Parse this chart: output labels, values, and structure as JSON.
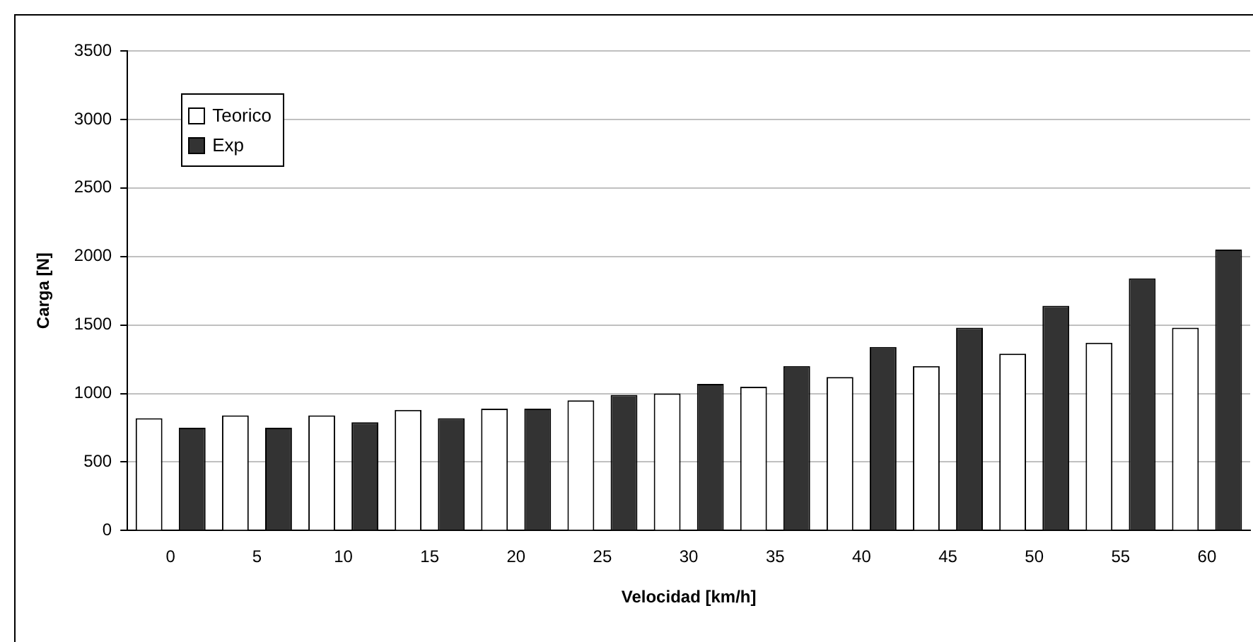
{
  "chart_data": {
    "type": "bar",
    "xlabel": "Velocidad [km/h]",
    "ylabel": "Carga [N]",
    "categories": [
      "0",
      "5",
      "10",
      "15",
      "20",
      "25",
      "30",
      "35",
      "40",
      "45",
      "50",
      "55",
      "60"
    ],
    "series": [
      {
        "name": "Teorico",
        "color": "#ffffff",
        "values": [
          820,
          840,
          840,
          880,
          890,
          950,
          1000,
          1050,
          1120,
          1200,
          1290,
          1370,
          1480
        ]
      },
      {
        "name": "Exp",
        "color": "#333333",
        "values": [
          750,
          750,
          790,
          820,
          890,
          990,
          1070,
          1200,
          1340,
          1480,
          1640,
          1840,
          2050
        ]
      }
    ],
    "ylim": [
      0,
      3500
    ],
    "yticks": [
      0,
      500,
      1000,
      1500,
      2000,
      2500,
      3000,
      3500
    ],
    "grid": "y",
    "legend": "top left"
  }
}
